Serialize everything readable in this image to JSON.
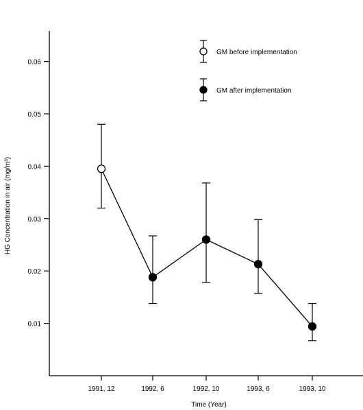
{
  "chart_data": {
    "type": "line",
    "xlabel": "Time (Year)",
    "ylabel": "HG Concentration in air (mg/m³)",
    "categories": [
      "1991, 12",
      "1992, 6",
      "1992, 10",
      "1993, 6",
      "1993, 10"
    ],
    "yticks": [
      "0.01",
      "0.02",
      "0.03",
      "0.04",
      "0.05",
      "0.06"
    ],
    "ylim": [
      0,
      0.07
    ],
    "grid": false,
    "legend_placement": "top-right",
    "legend": [
      {
        "label": "GM before implementation",
        "marker": "open-circle"
      },
      {
        "label": "GM after implementation",
        "marker": "filled-circle"
      }
    ],
    "points": [
      {
        "x": "1991, 12",
        "y": 0.0395,
        "low": 0.032,
        "high": 0.048,
        "marker": "open-circle"
      },
      {
        "x": "1992, 6",
        "y": 0.0188,
        "low": 0.0138,
        "high": 0.0267,
        "marker": "filled-circle"
      },
      {
        "x": "1992, 10",
        "y": 0.026,
        "low": 0.0178,
        "high": 0.0368,
        "marker": "filled-circle"
      },
      {
        "x": "1993, 6",
        "y": 0.0213,
        "low": 0.0157,
        "high": 0.0298,
        "marker": "filled-circle"
      },
      {
        "x": "1993, 10",
        "y": 0.0094,
        "low": 0.0067,
        "high": 0.0138,
        "marker": "filled-circle"
      }
    ]
  }
}
